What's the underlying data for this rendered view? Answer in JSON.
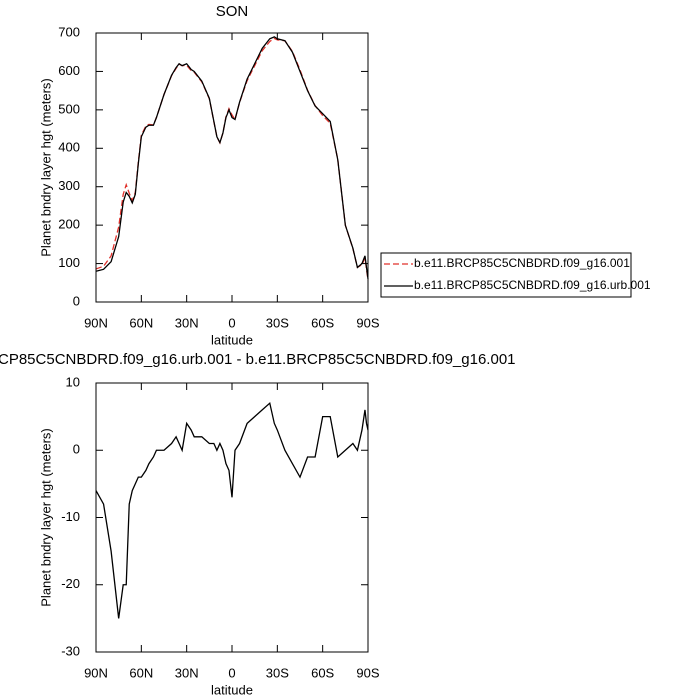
{
  "chart_data": [
    {
      "type": "line",
      "title": "SON",
      "xlabel": "latitude",
      "ylabel": "Planet bndry layer hgt (meters)",
      "x": [
        90,
        85,
        80,
        75,
        72,
        70,
        68,
        66,
        64,
        62,
        60,
        57,
        55,
        52,
        50,
        45,
        40,
        37,
        35,
        33,
        30,
        27,
        25,
        20,
        15,
        12,
        10,
        8,
        6,
        4,
        2,
        0,
        -2,
        -5,
        -10,
        -15,
        -20,
        -25,
        -28,
        -30,
        -35,
        -40,
        -45,
        -50,
        -55,
        -60,
        -65,
        -70,
        -75,
        -80,
        -83,
        -86,
        -88,
        -89,
        -90
      ],
      "series": [
        {
          "name": "b.e11.BRCP85C5CNBDRD.f09_g16.001",
          "color": "#e0302a",
          "dashed": true,
          "values": [
            86,
            93,
            120,
            195,
            280,
            305,
            283,
            264,
            285,
            364,
            434,
            458,
            462,
            461,
            480,
            540,
            589,
            608,
            619,
            615,
            616,
            602,
            598,
            573,
            529,
            469,
            430,
            414,
            440,
            482,
            503,
            487,
            475,
            519,
            576,
            615,
            654,
            678,
            686,
            682,
            680,
            652,
            604,
            551,
            511,
            485,
            465,
            371,
            200,
            139,
            90,
            97,
            114,
            86,
            57
          ]
        },
        {
          "name": "b.e11.BRCP85C5CNBDRD.f09_g16.urb.001",
          "color": "#000000",
          "dashed": false,
          "values": [
            80,
            85,
            105,
            170,
            260,
            285,
            275,
            258,
            280,
            360,
            430,
            455,
            460,
            460,
            480,
            540,
            590,
            610,
            620,
            615,
            620,
            605,
            600,
            575,
            530,
            470,
            430,
            415,
            440,
            480,
            500,
            480,
            475,
            520,
            580,
            620,
            660,
            685,
            690,
            685,
            680,
            650,
            600,
            550,
            510,
            490,
            470,
            370,
            200,
            140,
            90,
            100,
            120,
            90,
            60
          ]
        }
      ],
      "xlim": [
        90,
        -90
      ],
      "xticks": [
        {
          "value": 90,
          "label": "90N"
        },
        {
          "value": 60,
          "label": "60N"
        },
        {
          "value": 30,
          "label": "30N"
        },
        0,
        {
          "value": -30,
          "label": "30S"
        },
        {
          "value": -60,
          "label": "60S"
        },
        {
          "value": -90,
          "label": "90S"
        }
      ],
      "ylim": [
        0,
        700
      ],
      "yticks": [
        0,
        100,
        200,
        300,
        400,
        500,
        600,
        700
      ],
      "legend": "right"
    },
    {
      "type": "line",
      "title": "CP85C5CNBDRD.f09_g16.urb.001 - b.e11.BRCP85C5CNBDRD.f09_g16.001",
      "xlabel": "latitude",
      "ylabel": "Planet bndry layer hgt (meters)",
      "x": [
        90,
        85,
        80,
        75,
        72,
        70,
        68,
        66,
        64,
        62,
        60,
        57,
        55,
        52,
        50,
        45,
        40,
        37,
        35,
        33,
        30,
        27,
        25,
        20,
        15,
        12,
        10,
        8,
        6,
        4,
        2,
        0,
        -2,
        -5,
        -10,
        -15,
        -20,
        -25,
        -28,
        -30,
        -35,
        -40,
        -45,
        -50,
        -55,
        -60,
        -65,
        -70,
        -75,
        -80,
        -83,
        -86,
        -88,
        -89,
        -90
      ],
      "values": [
        -6,
        -8,
        -15,
        -25,
        -20,
        -20,
        -8,
        -6,
        -5,
        -4,
        -4,
        -3,
        -2,
        -1,
        0,
        0,
        1,
        2,
        1,
        0,
        4,
        3,
        2,
        2,
        1,
        1,
        0,
        1,
        0,
        -2,
        -3,
        -7,
        0,
        1,
        4,
        5,
        6,
        7,
        4,
        3,
        0,
        -2,
        -4,
        -1,
        -1,
        5,
        5,
        -1,
        0,
        1,
        0,
        3,
        6,
        4,
        3
      ],
      "color": "#000000",
      "xlim": [
        90,
        -90
      ],
      "xticks": [
        {
          "value": 90,
          "label": "90N"
        },
        {
          "value": 60,
          "label": "60N"
        },
        {
          "value": 30,
          "label": "30N"
        },
        0,
        {
          "value": -30,
          "label": "30S"
        },
        {
          "value": -60,
          "label": "60S"
        },
        {
          "value": -90,
          "label": "90S"
        }
      ],
      "ylim": [
        -30,
        10
      ],
      "yticks": [
        -30,
        -20,
        -10,
        0,
        10
      ]
    }
  ]
}
